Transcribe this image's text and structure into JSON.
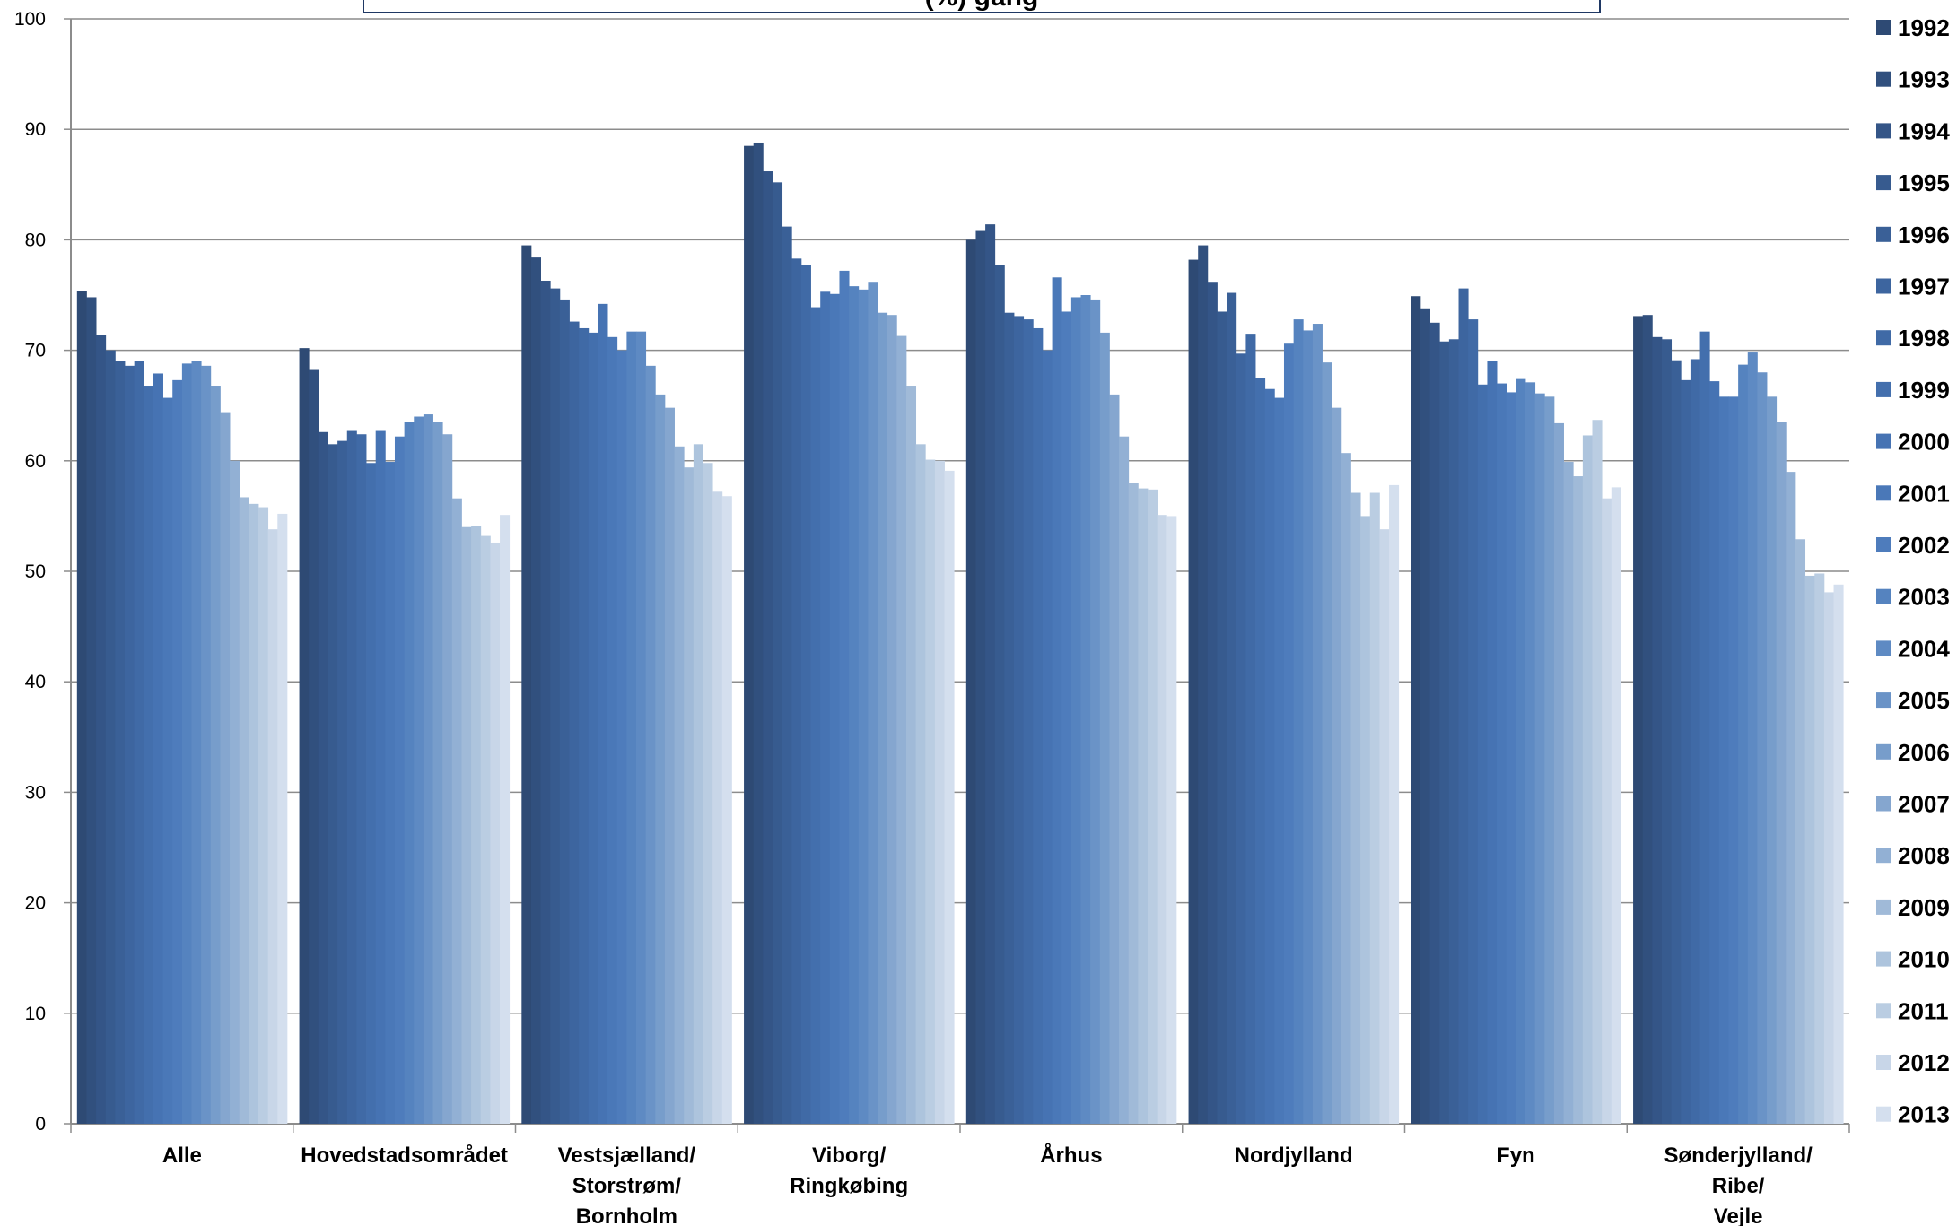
{
  "chart_data": {
    "type": "bar",
    "title": "(%)  gang",
    "ylim": [
      0,
      100
    ],
    "yticks": [
      0,
      10,
      20,
      30,
      40,
      50,
      60,
      70,
      80,
      90,
      100
    ],
    "grid": true,
    "legend_position": "right",
    "categories": [
      [
        "Alle"
      ],
      [
        "Hovedstadsområdet"
      ],
      [
        "Vestsjælland/",
        "Storstrøm/",
        "Bornholm"
      ],
      [
        "Viborg/",
        "Ringkøbing"
      ],
      [
        "Århus"
      ],
      [
        "Nordjylland"
      ],
      [
        "Fyn"
      ],
      [
        "Sønderjylland/",
        "Ribe/",
        "Vejle"
      ]
    ],
    "series": [
      {
        "name": "1992",
        "color": "#2e4a74",
        "values": [
          75.4,
          70.2,
          79.5,
          88.5,
          80.0,
          78.2,
          74.9,
          73.1
        ]
      },
      {
        "name": "1993",
        "color": "#31507e",
        "values": [
          74.8,
          68.3,
          78.4,
          88.8,
          80.8,
          79.5,
          73.8,
          73.2
        ]
      },
      {
        "name": "1994",
        "color": "#345587",
        "values": [
          71.4,
          62.6,
          76.3,
          86.2,
          81.4,
          76.2,
          72.5,
          71.2
        ]
      },
      {
        "name": "1995",
        "color": "#375b8f",
        "values": [
          70.0,
          61.5,
          75.6,
          85.2,
          77.7,
          73.5,
          70.8,
          71.0
        ]
      },
      {
        "name": "1996",
        "color": "#3a6097",
        "values": [
          69.0,
          61.8,
          74.6,
          81.2,
          73.4,
          75.2,
          71.0,
          69.1
        ]
      },
      {
        "name": "1997",
        "color": "#3d659f",
        "values": [
          68.6,
          62.7,
          72.6,
          78.3,
          73.1,
          69.7,
          75.6,
          67.3
        ]
      },
      {
        "name": "1998",
        "color": "#406aa6",
        "values": [
          69.0,
          62.4,
          72.0,
          77.7,
          72.8,
          71.5,
          72.8,
          69.2
        ]
      },
      {
        "name": "1999",
        "color": "#436fad",
        "values": [
          66.8,
          59.8,
          71.6,
          73.9,
          72.0,
          67.5,
          66.9,
          71.7
        ]
      },
      {
        "name": "2000",
        "color": "#4673b3",
        "values": [
          67.9,
          62.7,
          74.2,
          75.3,
          70.0,
          66.5,
          69.0,
          67.2
        ]
      },
      {
        "name": "2001",
        "color": "#4a78b8",
        "values": [
          65.7,
          59.9,
          71.2,
          75.1,
          76.6,
          65.7,
          67.0,
          65.8
        ]
      },
      {
        "name": "2002",
        "color": "#4e7cbc",
        "values": [
          67.3,
          62.2,
          70.0,
          77.2,
          73.5,
          70.6,
          66.2,
          65.8
        ]
      },
      {
        "name": "2003",
        "color": "#5583bf",
        "values": [
          68.8,
          63.5,
          71.7,
          75.8,
          74.8,
          72.8,
          67.4,
          68.7
        ]
      },
      {
        "name": "2004",
        "color": "#5e8ac3",
        "values": [
          69.0,
          64.0,
          71.7,
          75.5,
          75.0,
          71.8,
          67.1,
          69.8
        ]
      },
      {
        "name": "2005",
        "color": "#6a93c7",
        "values": [
          68.6,
          64.2,
          68.6,
          76.2,
          74.6,
          72.4,
          66.1,
          68.0
        ]
      },
      {
        "name": "2006",
        "color": "#779dcb",
        "values": [
          66.8,
          63.5,
          66.0,
          73.4,
          71.6,
          68.9,
          65.8,
          65.8
        ]
      },
      {
        "name": "2007",
        "color": "#85a6cf",
        "values": [
          64.4,
          62.4,
          64.8,
          73.2,
          66.0,
          64.8,
          63.4,
          63.5
        ]
      },
      {
        "name": "2008",
        "color": "#92b0d4",
        "values": [
          60.0,
          56.6,
          61.3,
          71.3,
          62.2,
          60.7,
          59.9,
          59.0
        ]
      },
      {
        "name": "2009",
        "color": "#a0bad8",
        "values": [
          56.7,
          54.0,
          59.4,
          66.8,
          58.0,
          57.1,
          58.6,
          52.9
        ]
      },
      {
        "name": "2010",
        "color": "#adc4dd",
        "values": [
          56.1,
          54.1,
          61.5,
          61.5,
          57.5,
          55.0,
          62.3,
          49.6
        ]
      },
      {
        "name": "2011",
        "color": "#bacde2",
        "values": [
          55.8,
          53.2,
          59.8,
          60.1,
          57.4,
          57.1,
          63.7,
          49.8
        ]
      },
      {
        "name": "2012",
        "color": "#c8d6e8",
        "values": [
          53.8,
          52.6,
          57.2,
          60.0,
          55.1,
          53.8,
          56.6,
          48.1
        ]
      },
      {
        "name": "2013",
        "color": "#d4dfee",
        "values": [
          55.2,
          55.1,
          56.8,
          59.1,
          55.0,
          57.8,
          57.6,
          48.8
        ]
      }
    ]
  }
}
